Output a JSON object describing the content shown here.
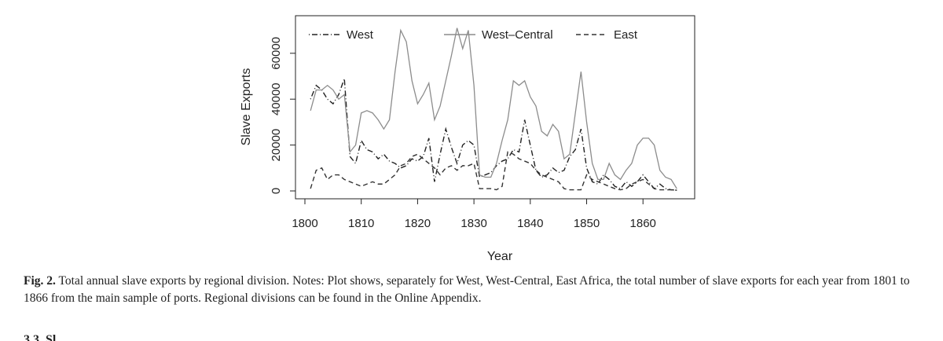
{
  "chart_data": {
    "type": "line",
    "title": "",
    "xlabel": "Year",
    "ylabel": "Slave Exports",
    "xlim": [
      1801,
      1866
    ],
    "ylim": [
      0,
      75000
    ],
    "x_ticks": [
      1800,
      1810,
      1820,
      1830,
      1840,
      1850,
      1860
    ],
    "y_ticks": [
      0,
      20000,
      40000,
      60000
    ],
    "grid": false,
    "legend_position": "top",
    "x": [
      1801,
      1802,
      1803,
      1804,
      1805,
      1806,
      1807,
      1808,
      1809,
      1810,
      1811,
      1812,
      1813,
      1814,
      1815,
      1816,
      1817,
      1818,
      1819,
      1820,
      1821,
      1822,
      1823,
      1824,
      1825,
      1826,
      1827,
      1828,
      1829,
      1830,
      1831,
      1832,
      1833,
      1834,
      1835,
      1836,
      1837,
      1838,
      1839,
      1840,
      1841,
      1842,
      1843,
      1844,
      1845,
      1846,
      1847,
      1848,
      1849,
      1850,
      1851,
      1852,
      1853,
      1854,
      1855,
      1856,
      1857,
      1858,
      1859,
      1860,
      1861,
      1862,
      1863,
      1864,
      1865,
      1866
    ],
    "series": [
      {
        "name": "West",
        "style": "dotdash",
        "color": "#222222",
        "values": [
          40000,
          46000,
          44000,
          40000,
          38000,
          42000,
          49000,
          15000,
          12000,
          22000,
          18000,
          17000,
          14000,
          16000,
          13000,
          12000,
          10000,
          11000,
          14000,
          13000,
          15000,
          23000,
          4000,
          16000,
          27000,
          19000,
          12000,
          20000,
          22000,
          20000,
          6000,
          7000,
          8000,
          11000,
          13000,
          14000,
          18000,
          17000,
          31000,
          20000,
          9000,
          6000,
          7000,
          10000,
          8000,
          9000,
          15000,
          18000,
          27000,
          10000,
          4000,
          3000,
          7000,
          5000,
          2000,
          1000,
          4000,
          2000,
          4000,
          7000,
          4000,
          1000,
          3000,
          1000,
          500,
          300
        ]
      },
      {
        "name": "West–Central",
        "style": "solid",
        "color": "#8c8c8c",
        "values": [
          35000,
          44000,
          44000,
          46000,
          44000,
          40000,
          42000,
          17000,
          20000,
          34000,
          35000,
          34000,
          31000,
          27000,
          31000,
          52000,
          70000,
          65000,
          48000,
          38000,
          42000,
          47000,
          31000,
          37000,
          48000,
          59000,
          71000,
          62000,
          70000,
          46000,
          7000,
          6000,
          6000,
          12000,
          22000,
          31000,
          48000,
          46000,
          48000,
          41000,
          37000,
          26000,
          24000,
          29000,
          26000,
          14000,
          16000,
          34000,
          52000,
          30000,
          12000,
          5000,
          5000,
          12000,
          7000,
          5000,
          9000,
          12000,
          20000,
          23000,
          23000,
          20000,
          9000,
          6000,
          5000,
          1000
        ]
      },
      {
        "name": "East",
        "style": "dashed",
        "color": "#333333",
        "values": [
          1000,
          9000,
          10000,
          5000,
          7000,
          7000,
          5000,
          4000,
          3000,
          2000,
          3000,
          4000,
          3000,
          3000,
          5000,
          7000,
          11000,
          12000,
          15000,
          16000,
          14000,
          12000,
          10000,
          7000,
          10000,
          11000,
          9000,
          11000,
          11000,
          12000,
          1000,
          1000,
          1000,
          500,
          2000,
          17000,
          16000,
          14000,
          13000,
          12000,
          9000,
          7000,
          6000,
          5000,
          4000,
          1000,
          500,
          500,
          500,
          7000,
          5000,
          4000,
          3000,
          2000,
          1000,
          500,
          1000,
          3000,
          4000,
          5000,
          3000,
          1000,
          500,
          500,
          500,
          300
        ]
      }
    ]
  },
  "caption": {
    "label": "Fig. 2.",
    "text": " Total annual slave exports by regional division. Notes: Plot shows, separately for West, West-Central, East Africa, the total number of slave exports for each year from 1801 to 1866 from the main sample of ports. Regional divisions can be found in the Online Appendix."
  },
  "next_heading": "3.3. Sl"
}
